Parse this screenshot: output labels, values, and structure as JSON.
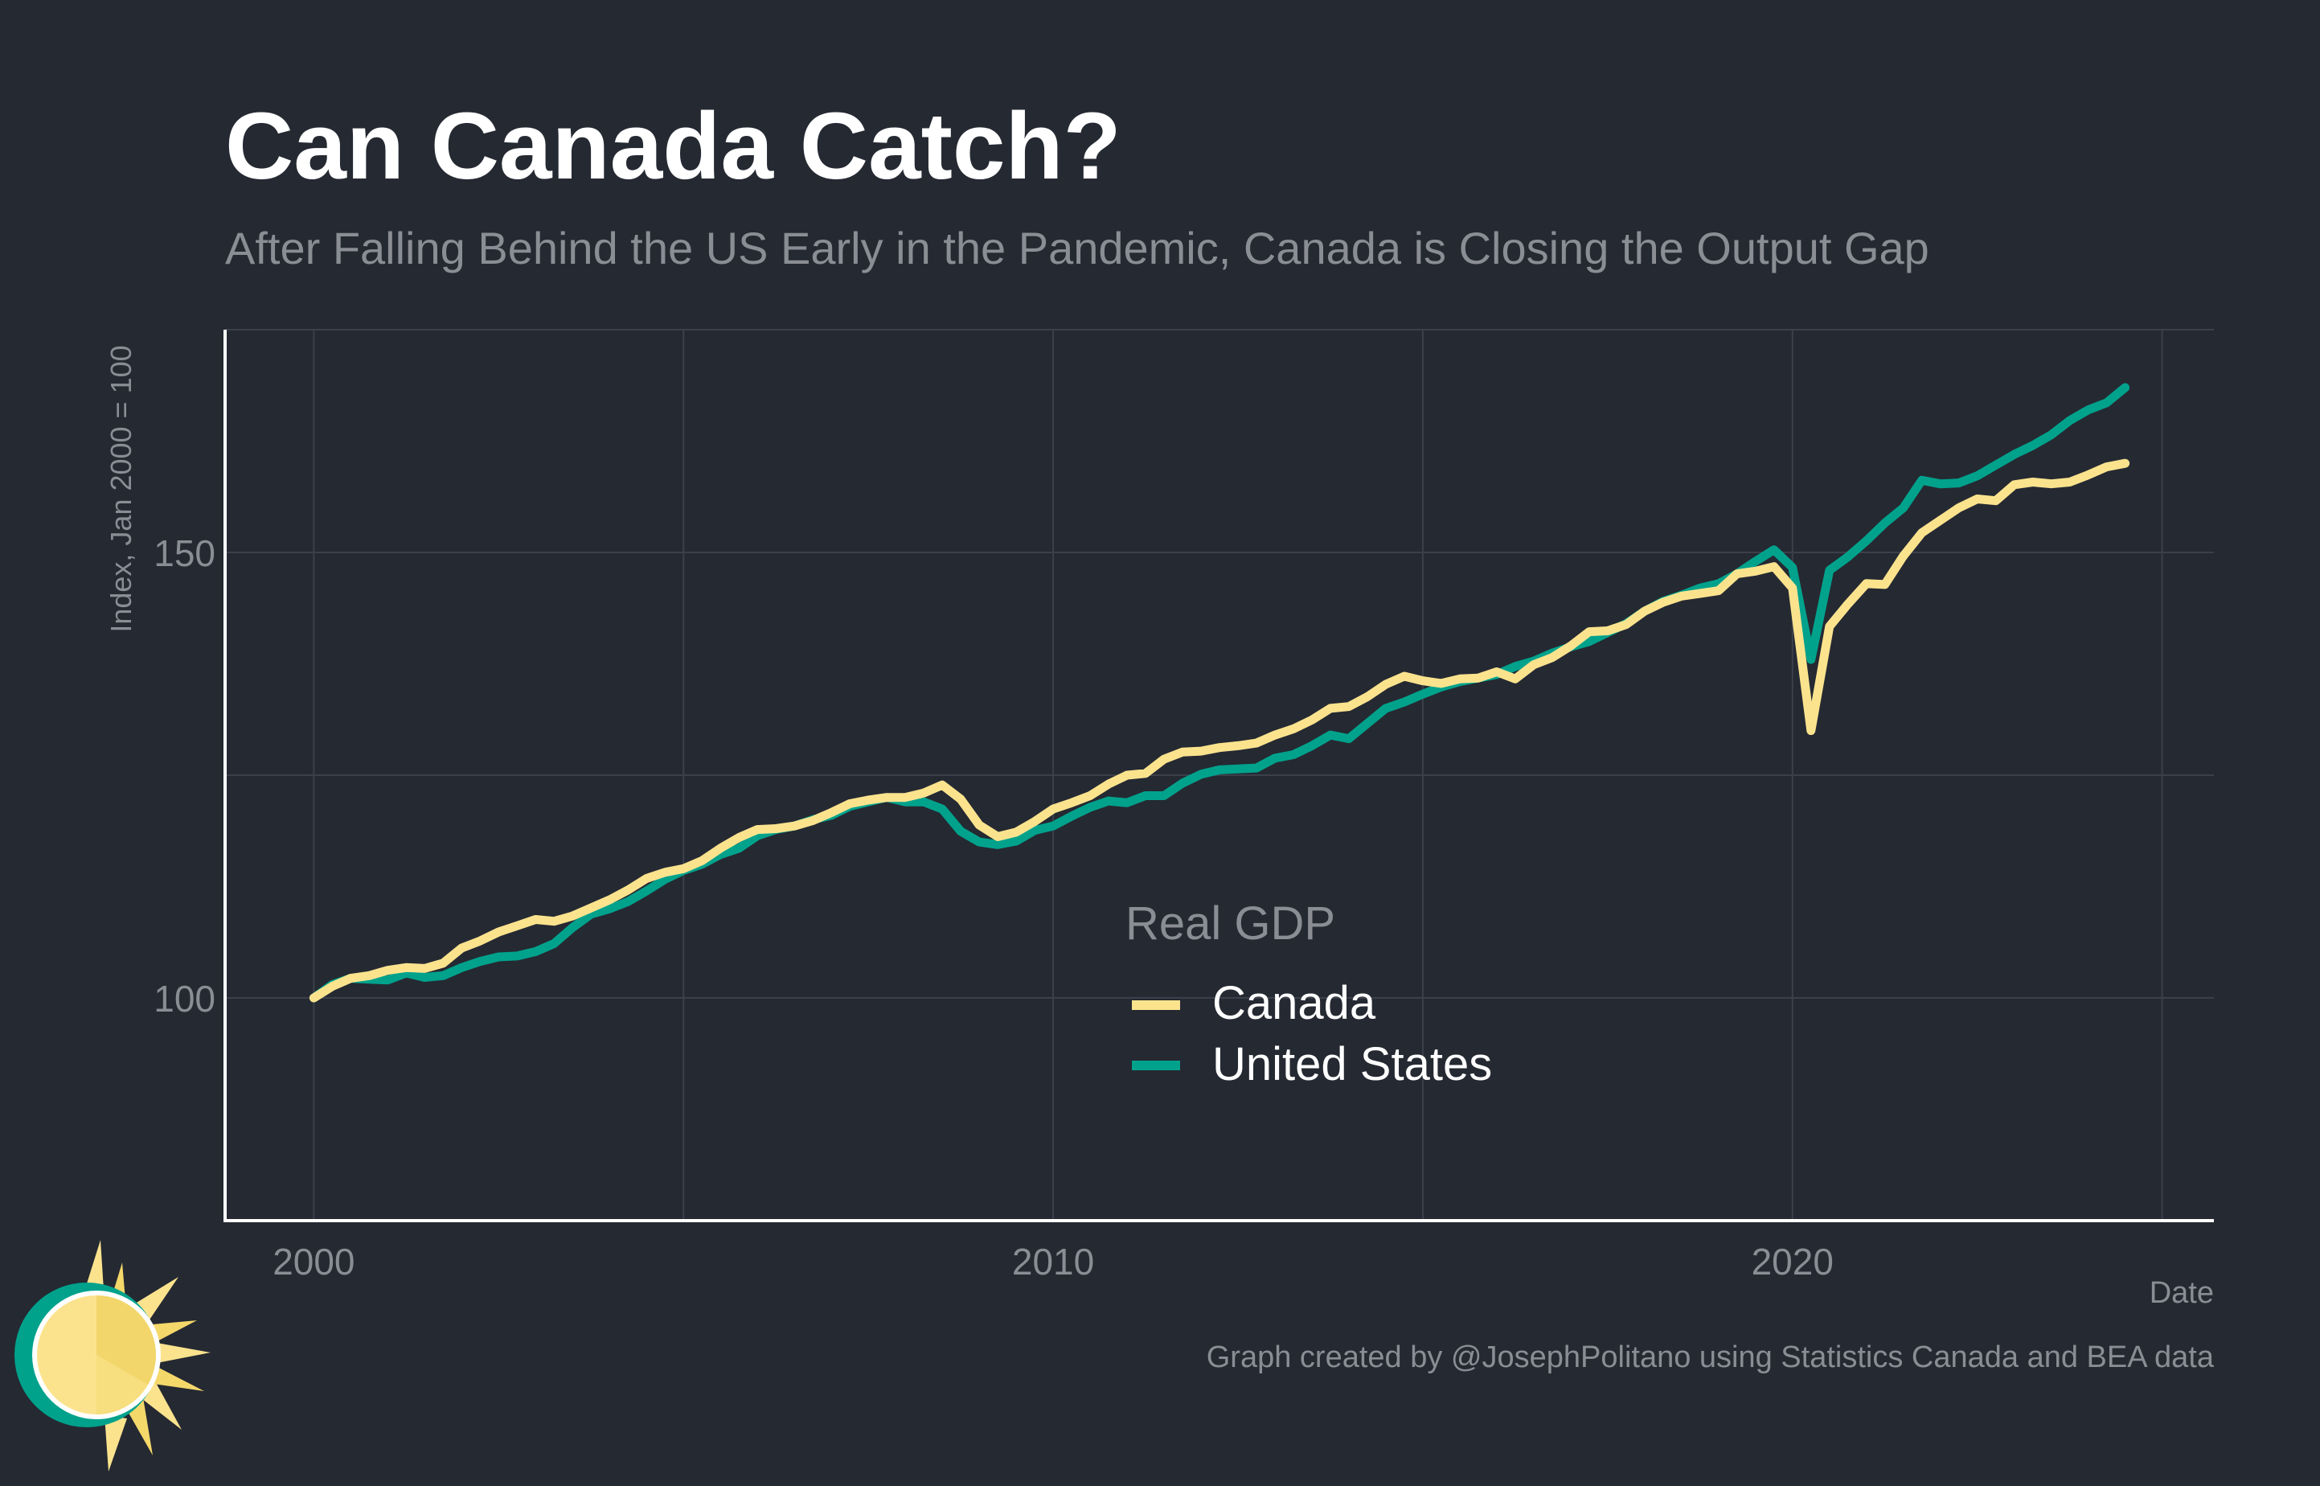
{
  "colors": {
    "background": "#252932",
    "canada": "#FBE38E",
    "united_states": "#00A28C",
    "grid": "#3B404A",
    "axis": "#FFFFFF",
    "title": "#FFFFFF",
    "muted_text": "#8A8D94"
  },
  "icons": [
    "sun-logo-icon"
  ],
  "chart_data": {
    "type": "line",
    "title": "Can Canada Catch?",
    "subtitle": "After Falling Behind the US Early in the Pandemic, Canada is Closing the Output Gap",
    "xlabel": "Date",
    "ylabel": "Index, Jan 2000 = 100",
    "xlim": [
      1998.8,
      2025.7
    ],
    "ylim": [
      75,
      175
    ],
    "x_ticks": [
      2000,
      2010,
      2020
    ],
    "x_tick_labels": [
      "2000",
      "2010",
      "2020"
    ],
    "x_minor_gridlines": [
      2005,
      2015,
      2025
    ],
    "y_ticks": [
      100,
      150
    ],
    "y_tick_labels": [
      "100",
      "150"
    ],
    "y_minor_gridlines": [
      125,
      175
    ],
    "grid": true,
    "legend": {
      "title": "Real GDP",
      "placement": "center-bottom inside plot"
    },
    "caption": "Graph created by @JosephPolitano using Statistics Canada and BEA data",
    "x": [
      2000.0,
      2000.25,
      2000.5,
      2000.75,
      2001.0,
      2001.25,
      2001.5,
      2001.75,
      2002.0,
      2002.25,
      2002.5,
      2002.75,
      2003.0,
      2003.25,
      2003.5,
      2003.75,
      2004.0,
      2004.25,
      2004.5,
      2004.75,
      2005.0,
      2005.25,
      2005.5,
      2005.75,
      2006.0,
      2006.25,
      2006.5,
      2006.75,
      2007.0,
      2007.25,
      2007.5,
      2007.75,
      2008.0,
      2008.25,
      2008.5,
      2008.75,
      2009.0,
      2009.25,
      2009.5,
      2009.75,
      2010.0,
      2010.25,
      2010.5,
      2010.75,
      2011.0,
      2011.25,
      2011.5,
      2011.75,
      2012.0,
      2012.25,
      2012.5,
      2012.75,
      2013.0,
      2013.25,
      2013.5,
      2013.75,
      2014.0,
      2014.25,
      2014.5,
      2014.75,
      2015.0,
      2015.25,
      2015.5,
      2015.75,
      2016.0,
      2016.25,
      2016.5,
      2016.75,
      2017.0,
      2017.25,
      2017.5,
      2017.75,
      2018.0,
      2018.25,
      2018.5,
      2018.75,
      2019.0,
      2019.25,
      2019.5,
      2019.75,
      2020.0,
      2020.25,
      2020.5,
      2020.75,
      2021.0,
      2021.25,
      2021.5,
      2021.75,
      2022.0,
      2022.25,
      2022.5,
      2022.75,
      2023.0,
      2023.25,
      2023.5,
      2023.75,
      2024.0,
      2024.25,
      2024.5
    ],
    "series": [
      {
        "name": "Canada",
        "color": "#FBE38E",
        "values": [
          100.0,
          101.3,
          102.2,
          102.5,
          103.1,
          103.4,
          103.3,
          103.9,
          105.6,
          106.4,
          107.4,
          108.1,
          108.8,
          108.6,
          109.2,
          110.1,
          111.0,
          112.1,
          113.4,
          114.1,
          114.5,
          115.4,
          116.8,
          118.0,
          118.9,
          119.0,
          119.3,
          119.9,
          120.8,
          121.8,
          122.2,
          122.5,
          122.5,
          123.0,
          123.9,
          122.3,
          119.4,
          118.1,
          118.6,
          119.8,
          121.2,
          121.9,
          122.7,
          124.0,
          125.0,
          125.2,
          126.8,
          127.6,
          127.7,
          128.1,
          128.3,
          128.6,
          129.5,
          130.2,
          131.2,
          132.5,
          132.7,
          133.8,
          135.2,
          136.1,
          135.6,
          135.3,
          135.8,
          135.9,
          136.6,
          135.8,
          137.4,
          138.2,
          139.5,
          141.1,
          141.2,
          141.9,
          143.4,
          144.4,
          145.1,
          145.4,
          145.7,
          147.6,
          147.9,
          148.4,
          146.0,
          130.0,
          141.7,
          144.2,
          146.5,
          146.4,
          149.6,
          152.2,
          153.6,
          155.0,
          156.0,
          155.8,
          157.6,
          157.9,
          157.7,
          157.9,
          158.7,
          159.6,
          160.0
        ]
      },
      {
        "name": "United States",
        "color": "#00A28C",
        "values": [
          100.0,
          101.5,
          102.2,
          102.1,
          102.0,
          102.8,
          102.3,
          102.5,
          103.4,
          104.1,
          104.6,
          104.7,
          105.2,
          106.1,
          107.9,
          109.4,
          110.0,
          110.8,
          112.0,
          113.3,
          114.3,
          115.0,
          116.1,
          116.8,
          118.2,
          118.9,
          119.3,
          120.0,
          120.5,
          121.5,
          122.0,
          122.5,
          122.0,
          122.0,
          121.2,
          118.7,
          117.5,
          117.2,
          117.6,
          118.8,
          119.3,
          120.4,
          121.4,
          122.1,
          121.9,
          122.7,
          122.7,
          124.1,
          125.1,
          125.6,
          125.7,
          125.8,
          126.9,
          127.3,
          128.3,
          129.5,
          129.1,
          130.8,
          132.5,
          133.2,
          134.1,
          134.9,
          135.5,
          135.9,
          136.3,
          137.2,
          137.8,
          138.7,
          139.4,
          140.0,
          141.0,
          142.0,
          143.4,
          144.5,
          145.2,
          146.0,
          146.5,
          147.6,
          149.0,
          150.3,
          148.3,
          138.0,
          148.0,
          149.5,
          151.3,
          153.3,
          155.0,
          158.1,
          157.7,
          157.8,
          158.6,
          159.8,
          161.0,
          162.0,
          163.2,
          164.8,
          166.0,
          166.8,
          168.5
        ]
      }
    ]
  }
}
